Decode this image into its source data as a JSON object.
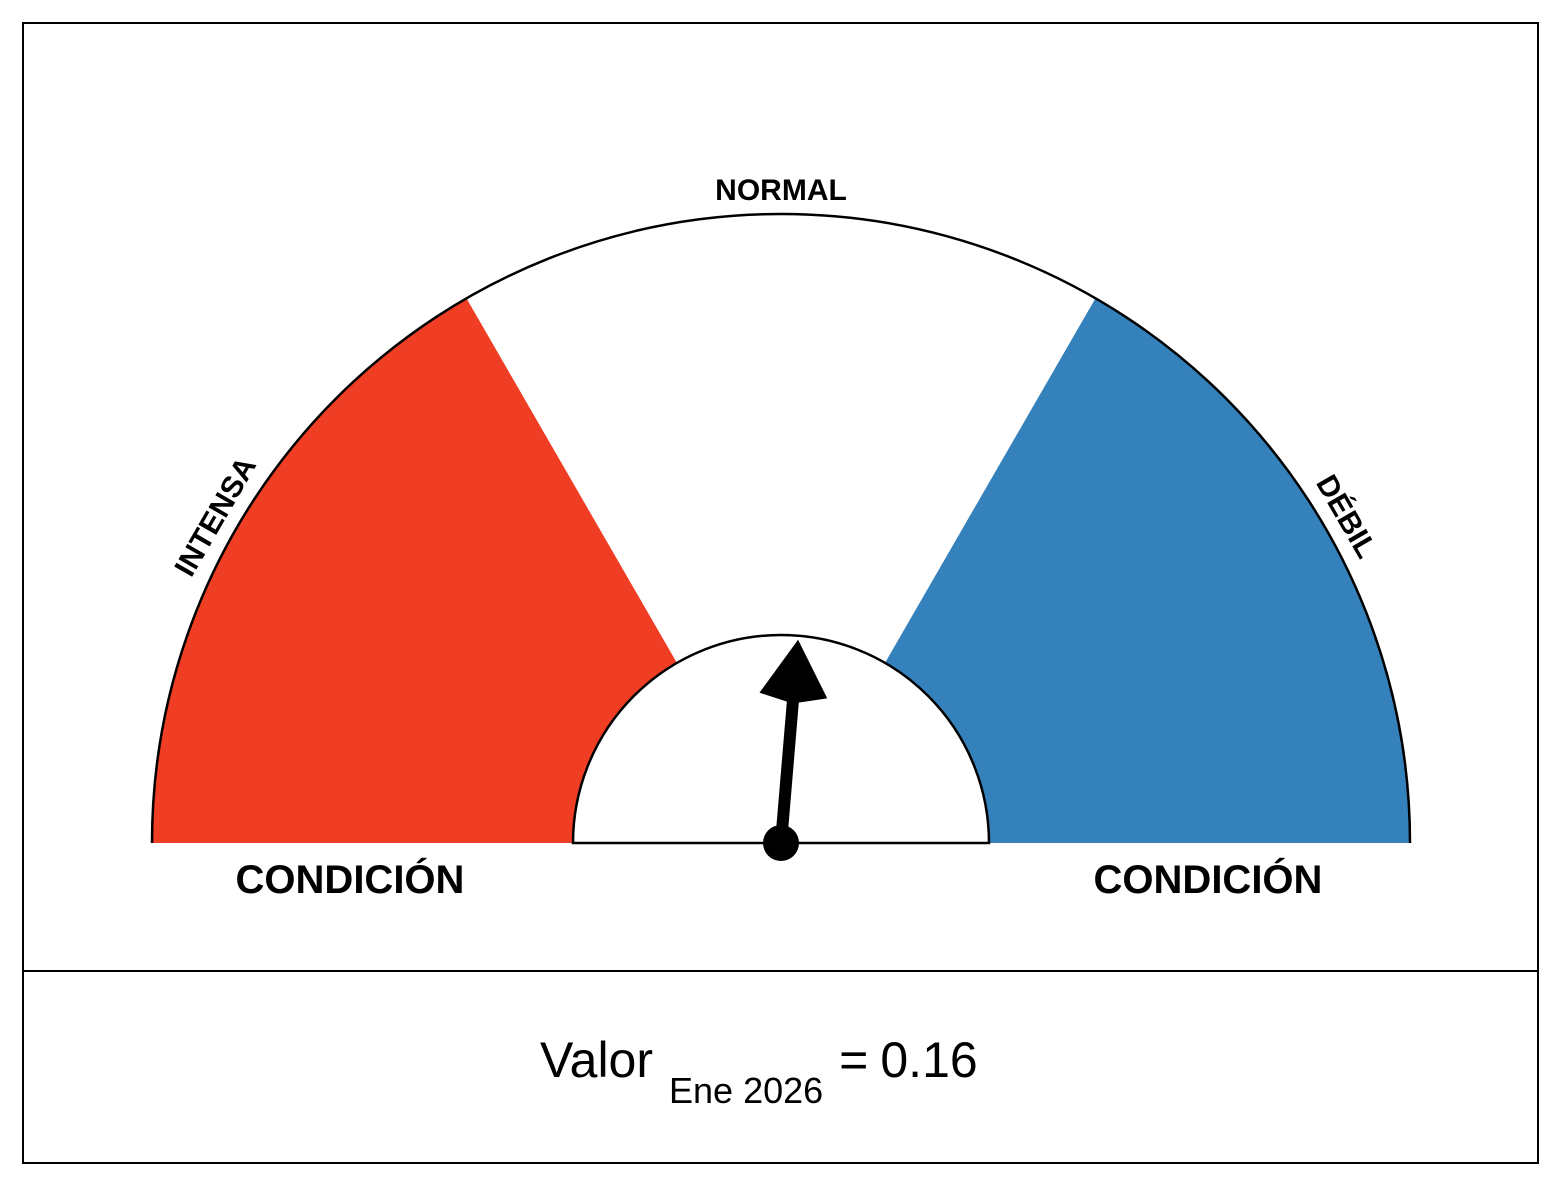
{
  "chart_data": {
    "type": "gauge",
    "range": [
      -3,
      3
    ],
    "sectors": [
      {
        "name": "INTENSA",
        "color": "#ef3e23",
        "from": -3,
        "to": -1
      },
      {
        "name": "NORMAL",
        "color": "#ffffff",
        "from": -1,
        "to": 1
      },
      {
        "name": "DÉBIL",
        "color": "#3581bc",
        "from": 1,
        "to": 3
      }
    ],
    "left_caption": "CONDICIÓN",
    "right_caption": "CONDICIÓN",
    "label": "Valor",
    "period": "Ene 2026",
    "operator": "=",
    "value": 0.16
  }
}
